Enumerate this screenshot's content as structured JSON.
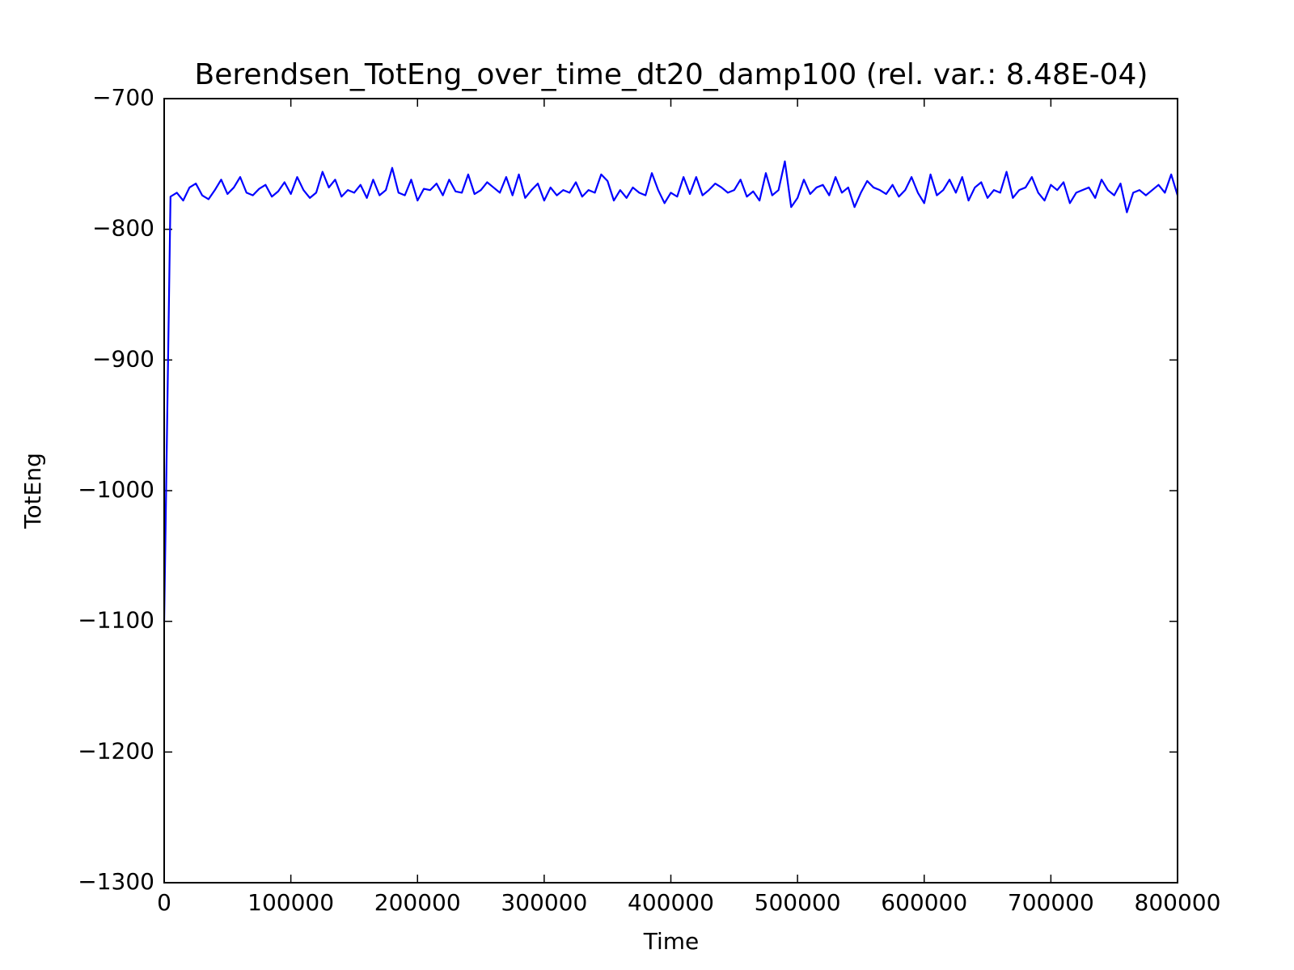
{
  "chart_data": {
    "type": "line",
    "title": "Berendsen_TotEng_over_time_dt20_damp100 (rel. var.: 8.48E-04)",
    "x_label": "Time",
    "y_label": "TotEng",
    "xlim": [
      0,
      800000
    ],
    "xticks": [
      0,
      100000,
      200000,
      300000,
      400000,
      500000,
      600000,
      700000,
      800000
    ],
    "ylim": [
      -1300,
      -700
    ],
    "yticks": [
      {
        "value": -1300,
        "label": "−1300"
      },
      {
        "value": -1200,
        "label": "−1200"
      },
      {
        "value": -1100,
        "label": "−1100"
      },
      {
        "value": -1000,
        "label": "−1000"
      },
      {
        "value": -900,
        "label": "−900"
      },
      {
        "value": -800,
        "label": "−800"
      },
      {
        "value": -700,
        "label": "−700"
      }
    ],
    "grid": false,
    "series": [
      {
        "color": "#0000ff",
        "x": [
          0,
          5000,
          10000,
          15000,
          20000,
          25000,
          30000,
          35000,
          40000,
          45000,
          50000,
          55000,
          60000,
          65000,
          70000,
          75000,
          80000,
          85000,
          90000,
          95000,
          100000,
          105000,
          110000,
          115000,
          120000,
          125000,
          130000,
          135000,
          140000,
          145000,
          150000,
          155000,
          160000,
          165000,
          170000,
          175000,
          180000,
          185000,
          190000,
          195000,
          200000,
          205000,
          210000,
          215000,
          220000,
          225000,
          230000,
          235000,
          240000,
          245000,
          250000,
          255000,
          260000,
          265000,
          270000,
          275000,
          280000,
          285000,
          290000,
          295000,
          300000,
          305000,
          310000,
          315000,
          320000,
          325000,
          330000,
          335000,
          340000,
          345000,
          350000,
          355000,
          360000,
          365000,
          370000,
          375000,
          380000,
          385000,
          390000,
          395000,
          400000,
          405000,
          410000,
          415000,
          420000,
          425000,
          430000,
          435000,
          440000,
          445000,
          450000,
          455000,
          460000,
          465000,
          470000,
          475000,
          480000,
          485000,
          490000,
          495000,
          500000,
          505000,
          510000,
          515000,
          520000,
          525000,
          530000,
          535000,
          540000,
          545000,
          550000,
          555000,
          560000,
          565000,
          570000,
          575000,
          580000,
          585000,
          590000,
          595000,
          600000,
          605000,
          610000,
          615000,
          620000,
          625000,
          630000,
          635000,
          640000,
          645000,
          650000,
          655000,
          660000,
          665000,
          670000,
          675000,
          680000,
          685000,
          690000,
          695000,
          700000,
          705000,
          710000,
          715000,
          720000,
          725000,
          730000,
          735000,
          740000,
          745000,
          750000,
          755000,
          760000,
          765000,
          770000,
          775000,
          780000,
          785000,
          790000,
          795000,
          800000
        ],
        "values": [
          -1100,
          -775,
          -772,
          -778,
          -768,
          -765,
          -774,
          -777,
          -770,
          -762,
          -773,
          -768,
          -760,
          -772,
          -774,
          -769,
          -766,
          -775,
          -771,
          -764,
          -773,
          -760,
          -770,
          -776,
          -772,
          -756,
          -768,
          -762,
          -775,
          -770,
          -772,
          -766,
          -776,
          -762,
          -774,
          -770,
          -753,
          -772,
          -774,
          -762,
          -778,
          -769,
          -770,
          -765,
          -774,
          -762,
          -771,
          -772,
          -758,
          -773,
          -770,
          -764,
          -768,
          -772,
          -760,
          -774,
          -758,
          -776,
          -770,
          -765,
          -778,
          -768,
          -774,
          -770,
          -772,
          -764,
          -775,
          -770,
          -772,
          -758,
          -763,
          -778,
          -770,
          -776,
          -768,
          -772,
          -774,
          -757,
          -770,
          -780,
          -772,
          -775,
          -760,
          -773,
          -760,
          -774,
          -770,
          -765,
          -768,
          -772,
          -770,
          -762,
          -775,
          -771,
          -778,
          -757,
          -774,
          -770,
          -748,
          -783,
          -776,
          -762,
          -773,
          -768,
          -766,
          -774,
          -760,
          -772,
          -768,
          -783,
          -772,
          -763,
          -768,
          -770,
          -773,
          -766,
          -775,
          -770,
          -760,
          -772,
          -780,
          -758,
          -774,
          -770,
          -762,
          -772,
          -760,
          -778,
          -768,
          -764,
          -776,
          -770,
          -772,
          -756,
          -776,
          -770,
          -768,
          -760,
          -772,
          -778,
          -766,
          -770,
          -764,
          -780,
          -772,
          -770,
          -768,
          -776,
          -762,
          -770,
          -774,
          -765,
          -787,
          -772,
          -770,
          -774,
          -770,
          -766,
          -772,
          -758,
          -774
        ]
      }
    ]
  }
}
